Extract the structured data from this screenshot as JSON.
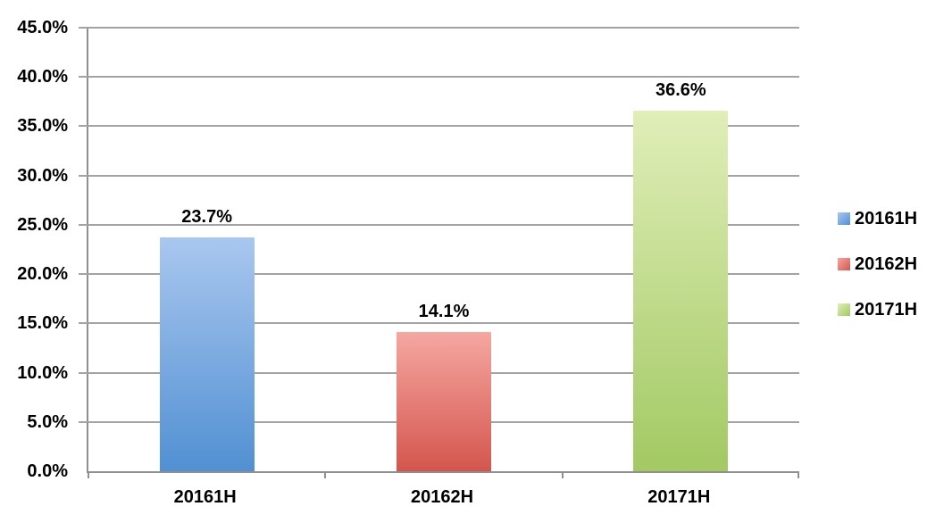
{
  "chart_data": {
    "type": "bar",
    "title": "",
    "xlabel": "",
    "ylabel": "",
    "categories": [
      "20161H",
      "20162H",
      "20171H"
    ],
    "values": [
      23.7,
      14.1,
      36.6
    ],
    "series": [
      {
        "name": "20161H",
        "value": 23.7,
        "label": "23.7%",
        "color_top": "#a9c7ef",
        "color_bottom": "#5190d2"
      },
      {
        "name": "20162H",
        "value": 14.1,
        "label": "14.1%",
        "color_top": "#f5a7a1",
        "color_bottom": "#d4564e"
      },
      {
        "name": "20171H",
        "value": 36.6,
        "label": "36.6%",
        "color_top": "#e0eeb8",
        "color_bottom": "#a2c963"
      }
    ],
    "ylim": [
      0,
      45
    ],
    "y_tick_step": 5,
    "y_ticks": [
      "0.0%",
      "5.0%",
      "10.0%",
      "15.0%",
      "20.0%",
      "25.0%",
      "30.0%",
      "35.0%",
      "40.0%",
      "45.0%"
    ],
    "grid": true,
    "legend_position": "right",
    "legend": [
      "20161H",
      "20162H",
      "20171H"
    ]
  },
  "colors": {
    "background": "#ffffff",
    "gridline": "#a3a3a3",
    "axis": "#8f8f8f",
    "text": "#000000"
  }
}
